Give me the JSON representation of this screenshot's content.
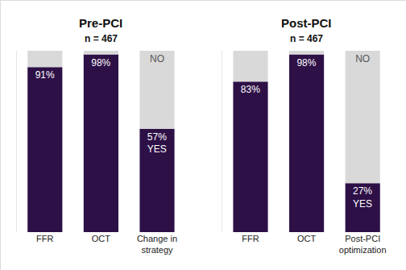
{
  "chart_data": [
    {
      "type": "bar",
      "title": "Pre-PCI",
      "subtitle": "n = 467",
      "stacked": true,
      "data_labels": true,
      "tick_labels": "x",
      "grid": false,
      "ylim": [
        0,
        100
      ],
      "categories": [
        "FFR",
        "OCT",
        "Change in\nstrategy"
      ],
      "series": [
        {
          "color": "#2d1046",
          "values": [
            91,
            98,
            57
          ],
          "value_labels": [
            "91%",
            "98%",
            "57%\nYES"
          ]
        },
        {
          "color": "#d9d9d9",
          "values": [
            9,
            2,
            43
          ],
          "value_labels": [
            null,
            null,
            "NO"
          ]
        }
      ]
    },
    {
      "type": "bar",
      "title": "Post-PCI",
      "subtitle": "n = 467",
      "stacked": true,
      "data_labels": true,
      "tick_labels": "x",
      "grid": false,
      "ylim": [
        0,
        100
      ],
      "categories": [
        "FFR",
        "OCT",
        "Post-PCI\noptimization"
      ],
      "series": [
        {
          "color": "#2d1046",
          "values": [
            83,
            98,
            27
          ],
          "value_labels": [
            "83%",
            "98%",
            "27%\nYES"
          ]
        },
        {
          "color": "#d9d9d9",
          "values": [
            17,
            2,
            73
          ],
          "value_labels": [
            null,
            null,
            "NO"
          ]
        }
      ]
    }
  ]
}
